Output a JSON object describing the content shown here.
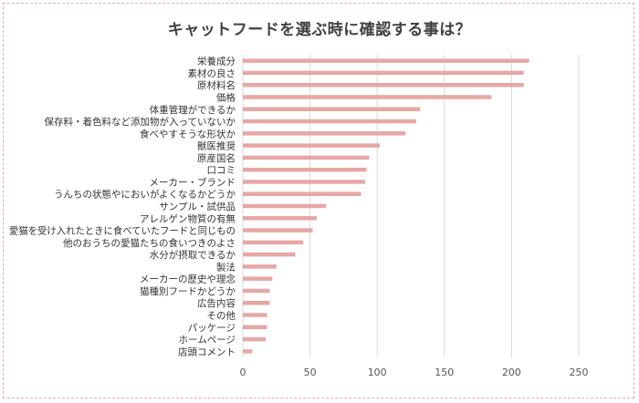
{
  "chart_data": {
    "type": "bar",
    "orientation": "horizontal",
    "title": "キャットフードを選ぶ時に確認する事は？",
    "xlabel": "",
    "ylabel": "",
    "xlim": [
      0,
      250
    ],
    "xticks": [
      0,
      50,
      100,
      150,
      200,
      250
    ],
    "grid": true,
    "legend": false,
    "bar_color": "#e6a7a5",
    "categories": [
      "栄養成分",
      "素材の良さ",
      "原材料名",
      "価格",
      "体重管理ができるか",
      "保存料・着色料など添加物が入っていないか",
      "食べやすそうな形状か",
      "獣医推奨",
      "原産国名",
      "口コミ",
      "メーカー・ブランド",
      "うんちの状態やにおいがよくなるかどうか",
      "サンプル・試供品",
      "アレルゲン物質の有無",
      "愛猫を受け入れたときに食べていたフードと同じもの",
      "他のおうちの愛猫たちの食いつきのよさ",
      "水分が摂取できるか",
      "製法",
      "メーカーの歴史や理念",
      "猫種別フードかどうか",
      "広告内容",
      "その他",
      "パッケージ",
      "ホームページ",
      "店頭コメント"
    ],
    "values": [
      213,
      209,
      209,
      185,
      132,
      129,
      121,
      102,
      94,
      92,
      91,
      88,
      62,
      55,
      52,
      45,
      39,
      25,
      22,
      20,
      20,
      18,
      18,
      17,
      7
    ]
  }
}
